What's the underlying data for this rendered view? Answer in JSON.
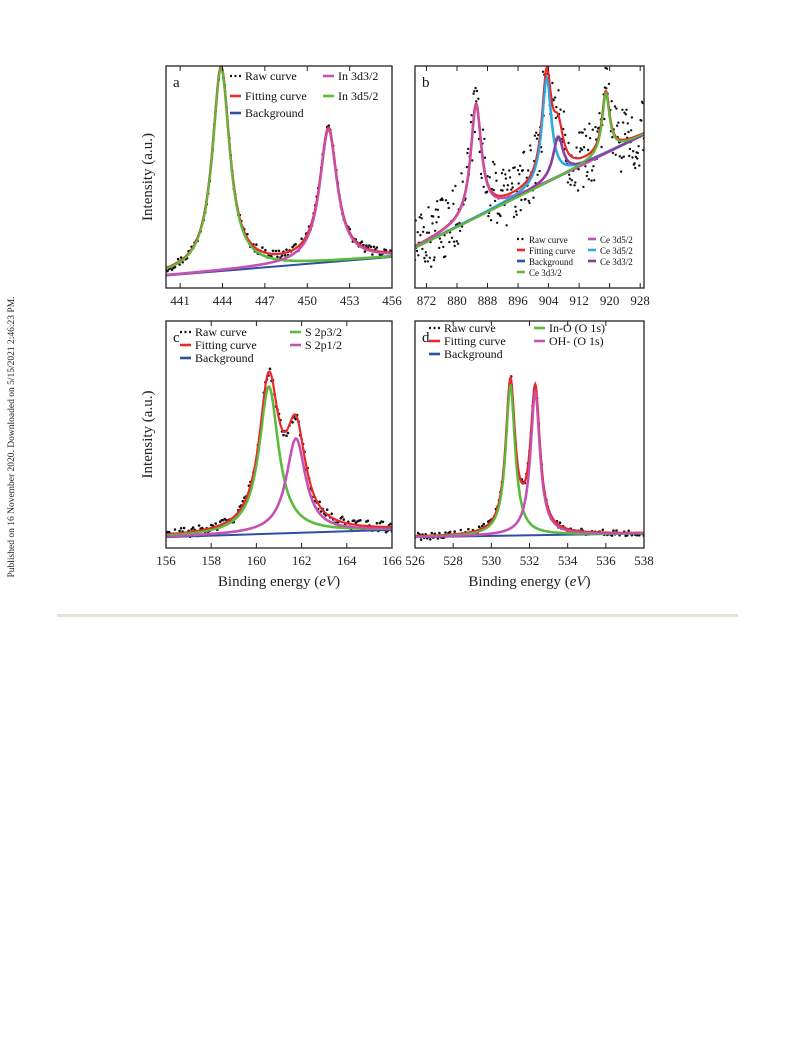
{
  "side_note": "Published on 16 November 2020. Downloaded on 5/15/2021 2:46:23 PM.",
  "colors": {
    "raw": "#111111",
    "fitting": "#e8282b",
    "background": "#2e4fa3",
    "green": "#5cba3c",
    "magenta": "#c452b3",
    "cyan": "#2fa8e0",
    "purple": "#8a3d9e",
    "rule": "#dde7d3"
  },
  "chart_data": [
    {
      "type": "line",
      "panel_label": "a",
      "ylabel": "Intensity (a.u.)",
      "xlabel": "",
      "xlim": [
        440,
        456
      ],
      "ylim": [
        0,
        1.07
      ],
      "x_ticks": [
        "441",
        "444",
        "447",
        "450",
        "453",
        "456"
      ],
      "legend": [
        "Raw curve",
        "Fitting curve",
        "Background",
        "In 3d3/2",
        "In 3d5/2"
      ],
      "background": {
        "x": [
          440,
          456
        ],
        "y": [
          0.06,
          0.15
        ]
      },
      "peaks": [
        {
          "name": "In 3d5/2",
          "center": 443.9,
          "height": 0.98,
          "width": 0.75,
          "color_key": "green"
        },
        {
          "name": "In 3d3/2",
          "center": 451.5,
          "height": 0.64,
          "width": 0.75,
          "color_key": "magenta"
        }
      ],
      "noise": 0.022
    },
    {
      "type": "line",
      "panel_label": "b",
      "ylabel": "",
      "xlabel": "",
      "xlim": [
        869,
        929
      ],
      "ylim": [
        -0.1,
        1.0
      ],
      "x_ticks": [
        "872",
        "880",
        "888",
        "896",
        "904",
        "912",
        "920",
        "928"
      ],
      "legend": [
        "Raw curve",
        "Fitting curve",
        "Background",
        "Ce 3d3/2",
        "Ce 3d5/2",
        "Ce 3d5/2",
        "Ce 3d3/2"
      ],
      "background": {
        "x": [
          869,
          929
        ],
        "y": [
          0.1,
          0.66
        ]
      },
      "peaks": [
        {
          "name": "Ce 3d5/2",
          "center": 885.0,
          "height": 0.56,
          "width": 1.7,
          "color_key": "magenta"
        },
        {
          "name": "Ce 3d5/2",
          "center": 903.5,
          "height": 0.52,
          "width": 1.5,
          "color_key": "cyan"
        },
        {
          "name": "Ce 3d3/2",
          "center": 906.5,
          "height": 0.2,
          "width": 1.6,
          "color_key": "purple"
        },
        {
          "name": "Ce 3d3/2",
          "center": 919.0,
          "height": 0.3,
          "width": 1.2,
          "color_key": "green"
        }
      ],
      "noise": 0.16
    },
    {
      "type": "line",
      "panel_label": "c",
      "ylabel": "Intensity (a.u.)",
      "xlabel": "Binding energy (eV)",
      "xlim": [
        156,
        166
      ],
      "ylim": [
        0,
        1.25
      ],
      "x_ticks": [
        "156",
        "158",
        "160",
        "162",
        "164",
        "166"
      ],
      "legend": [
        "Raw curve",
        "Fitting curve",
        "Background",
        "S 2p3/2",
        "S 2p1/2"
      ],
      "background": {
        "x": [
          156,
          166
        ],
        "y": [
          0.06,
          0.1
        ]
      },
      "peaks": [
        {
          "name": "S 2p3/2",
          "center": 160.55,
          "height": 0.81,
          "width": 0.52,
          "color_key": "green"
        },
        {
          "name": "S 2p1/2",
          "center": 161.75,
          "height": 0.52,
          "width": 0.52,
          "color_key": "magenta"
        }
      ],
      "noise": 0.03
    },
    {
      "type": "line",
      "panel_label": "d",
      "ylabel": "",
      "xlabel": "Binding energy (eV)",
      "xlim": [
        526,
        538
      ],
      "ylim": [
        0,
        1.25
      ],
      "x_ticks": [
        "526",
        "528",
        "530",
        "532",
        "534",
        "536",
        "538"
      ],
      "legend": [
        "Raw curve",
        "Fitting curve",
        "Background",
        "In-O (O 1s)",
        "OH- (O 1s)"
      ],
      "background": {
        "x": [
          526,
          538
        ],
        "y": [
          0.06,
          0.08
        ]
      },
      "peaks": [
        {
          "name": "In-O (O 1s)",
          "center": 531.0,
          "height": 0.83,
          "width": 0.3,
          "color_key": "green"
        },
        {
          "name": "OH- (O 1s)",
          "center": 532.3,
          "height": 0.79,
          "width": 0.3,
          "color_key": "magenta"
        }
      ],
      "noise": 0.02
    }
  ]
}
